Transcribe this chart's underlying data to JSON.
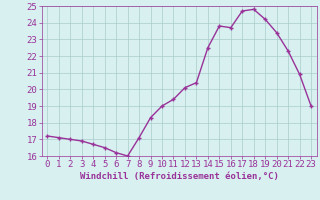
{
  "x": [
    0,
    1,
    2,
    3,
    4,
    5,
    6,
    7,
    8,
    9,
    10,
    11,
    12,
    13,
    14,
    15,
    16,
    17,
    18,
    19,
    20,
    21,
    22,
    23
  ],
  "y": [
    17.2,
    17.1,
    17.0,
    16.9,
    16.7,
    16.5,
    16.2,
    16.0,
    17.1,
    18.3,
    19.0,
    19.4,
    20.1,
    20.4,
    22.5,
    23.8,
    23.7,
    24.7,
    24.8,
    24.2,
    23.4,
    22.3,
    20.9,
    19.0
  ],
  "line_color": "#993399",
  "marker": "+",
  "marker_color": "#993399",
  "bg_color": "#d8f0f0",
  "grid_color": "#aacccc",
  "xlabel": "Windchill (Refroidissement éolien,°C)",
  "xlabel_color": "#993399",
  "tick_color": "#993399",
  "ylim": [
    16,
    25
  ],
  "yticks": [
    16,
    17,
    18,
    19,
    20,
    21,
    22,
    23,
    24,
    25
  ],
  "xticks": [
    0,
    1,
    2,
    3,
    4,
    5,
    6,
    7,
    8,
    9,
    10,
    11,
    12,
    13,
    14,
    15,
    16,
    17,
    18,
    19,
    20,
    21,
    22,
    23
  ],
  "linewidth": 1.0,
  "markersize": 3.5,
  "tick_fontsize": 6.5,
  "xlabel_fontsize": 6.5
}
